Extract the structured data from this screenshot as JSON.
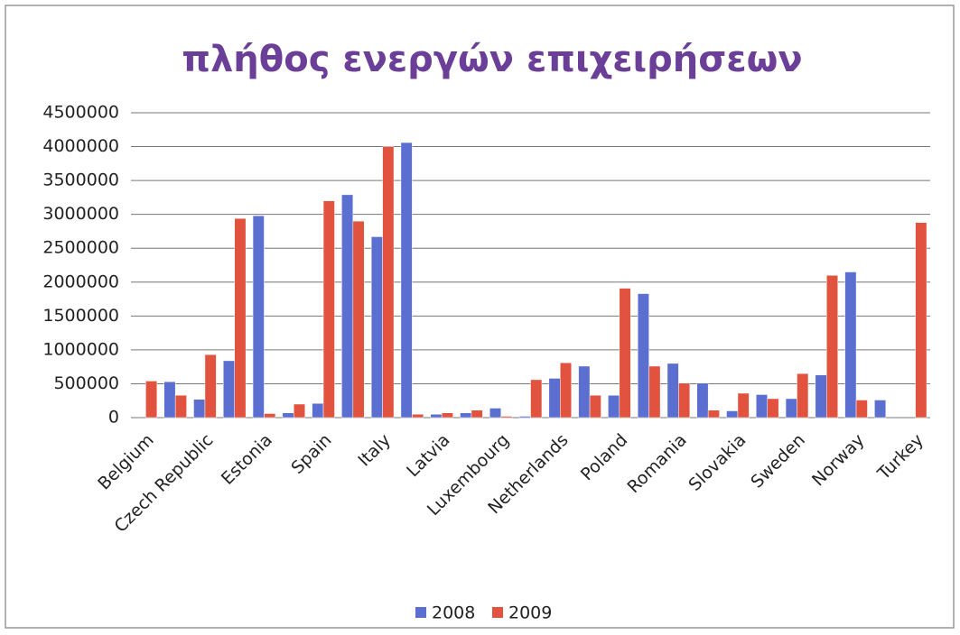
{
  "chart_data": {
    "type": "bar",
    "title": "πλήθος ενεργών επιχειρήσεων",
    "categories": [
      "Belgium",
      null,
      "Czech Republic",
      null,
      "Estonia",
      null,
      "Spain",
      null,
      "Italy",
      null,
      "Latvia",
      null,
      "Luxembourg",
      null,
      "Netherlands",
      null,
      "Poland",
      null,
      "Romania",
      null,
      "Slovakia",
      null,
      "Sweden",
      null,
      "Norway",
      null,
      "Turkey"
    ],
    "series": [
      {
        "name": "2008",
        "color": "#5b6fd1",
        "values": [
          null,
          530000,
          270000,
          840000,
          2980000,
          70000,
          210000,
          3290000,
          2670000,
          4060000,
          50000,
          70000,
          140000,
          20000,
          580000,
          760000,
          330000,
          1830000,
          800000,
          510000,
          100000,
          340000,
          280000,
          630000,
          2150000,
          260000,
          null
        ]
      },
      {
        "name": "2009",
        "color": "#e2533f",
        "values": [
          540000,
          330000,
          930000,
          2940000,
          60000,
          200000,
          3200000,
          2900000,
          4000000,
          50000,
          70000,
          110000,
          20000,
          560000,
          810000,
          330000,
          1910000,
          760000,
          510000,
          110000,
          360000,
          280000,
          650000,
          2100000,
          260000,
          null,
          2880000
        ]
      }
    ],
    "ylim": [
      0,
      4500000
    ],
    "yticks": [
      0,
      500000,
      1000000,
      1500000,
      2000000,
      2500000,
      3000000,
      3500000,
      4000000,
      4500000
    ],
    "grid": true,
    "legend": "bottom"
  }
}
